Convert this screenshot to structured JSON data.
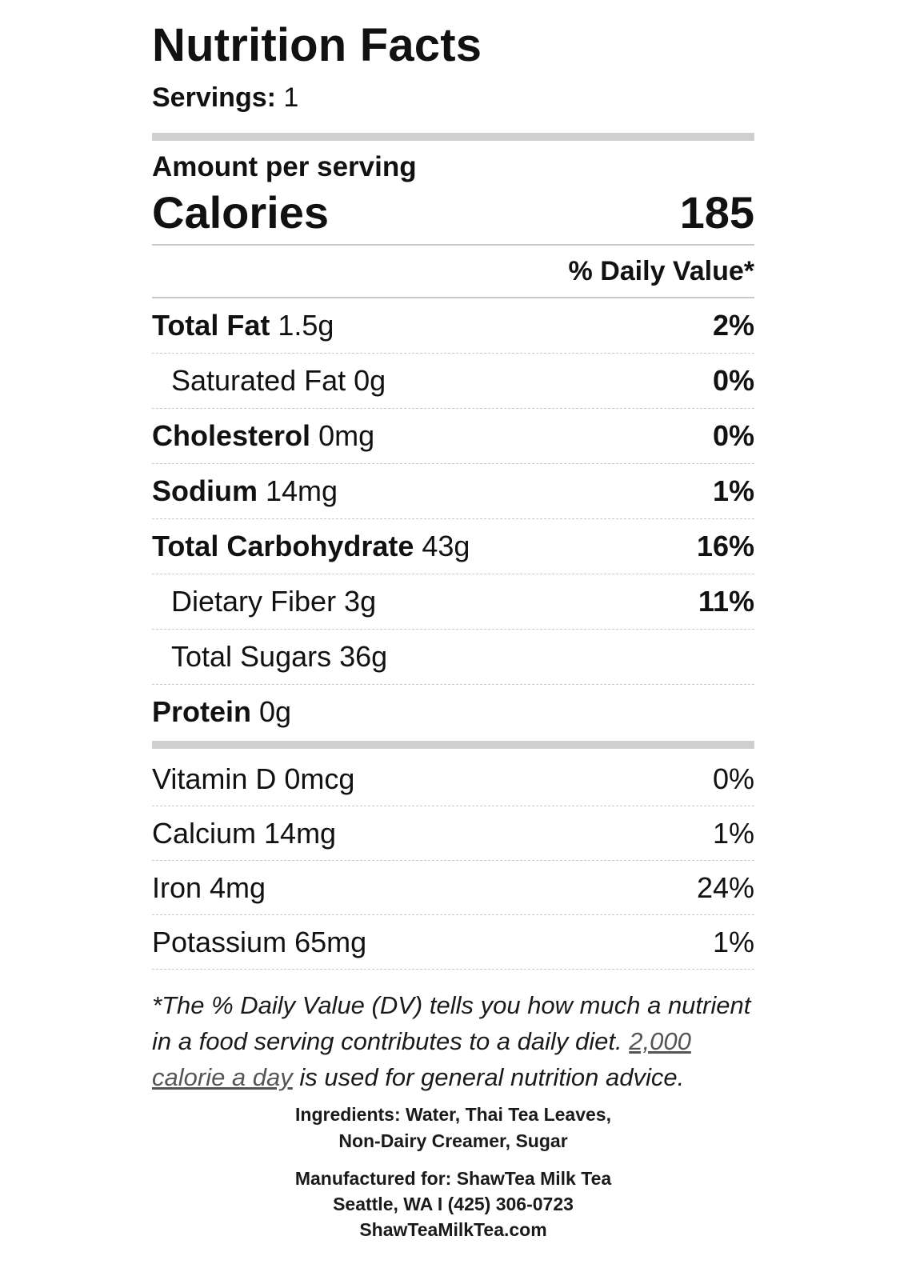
{
  "label": {
    "title": "Nutrition Facts",
    "servings_label": "Servings:",
    "servings_value": "1",
    "amount_per_serving": "Amount per serving",
    "calories_label": "Calories",
    "calories_value": "185",
    "daily_value_header": "% Daily Value*",
    "nutrients": [
      {
        "name": "Total Fat",
        "amount": "1.5g",
        "dv": "2%"
      },
      {
        "name": "Saturated Fat 0g",
        "dv": "0%"
      },
      {
        "name": "Cholesterol",
        "amount": "0mg",
        "dv": "0%"
      },
      {
        "name": "Sodium",
        "amount": "14mg",
        "dv": "1%"
      },
      {
        "name": "Total Carbohydrate",
        "amount": "43g",
        "dv": "16%"
      },
      {
        "name": "Dietary Fiber 3g",
        "dv": "11%"
      },
      {
        "name": "Total Sugars 36g"
      },
      {
        "name": "Protein",
        "amount": "0g"
      }
    ],
    "vitamins": [
      {
        "name": "Vitamin D 0mcg",
        "dv": "0%"
      },
      {
        "name": "Calcium 14mg",
        "dv": "1%"
      },
      {
        "name": "Iron 4mg",
        "dv": "24%"
      },
      {
        "name": "Potassium 65mg",
        "dv": "1%"
      }
    ],
    "footnote_part1": "*The % Daily Value (DV) tells you how much a nutrient in a food serving contributes to a daily diet.",
    "footnote_link": "2,000 calorie a day",
    "footnote_part2": "is used for general nutrition advice.",
    "ingredients_line1": "Ingredients: Water, Thai Tea Leaves,",
    "ingredients_line2": "Non-Dairy Creamer, Sugar",
    "manufacturer_line1": "Manufactured for: ShawTea Milk Tea",
    "manufacturer_line2": "Seattle, WA I (425) 306-0723",
    "website": "ShawTeaMilkTea.com"
  }
}
